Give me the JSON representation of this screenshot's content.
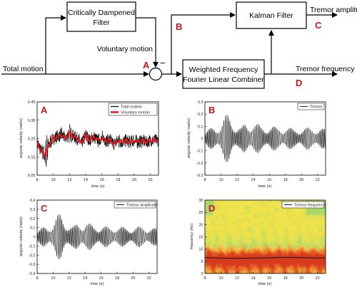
{
  "diagram": {
    "blocks": {
      "cd_filter": [
        "Critically Dampened",
        "Filter"
      ],
      "kalman": "Kalman Filter",
      "wflc": [
        "Weighted Frequency",
        "Fourier Linear Combiner"
      ]
    },
    "signals": {
      "total_motion": "Total motion",
      "voluntary_motion": "Voluntary motion",
      "tremor_amplitude": "Tremor amplitude",
      "tremor_frequency": "Tremor frequency"
    },
    "junction": {
      "minus": "−"
    },
    "markers": {
      "a": "A",
      "b": "B",
      "c": "C",
      "d": "D"
    }
  },
  "colors": {
    "marker": "#c8141e",
    "total_motion_line": "#000000",
    "voluntary_motion_line": "#e8151b",
    "tremor_line": "#222222",
    "freq_line": "#1a1a1a"
  },
  "chart_data": [
    {
      "panel": "A",
      "type": "line",
      "xlabel": "time (s)",
      "ylabel": "angular velocity (rad/s)",
      "xlim": [
        8,
        23
      ],
      "ylim": [
        0.05,
        0.45
      ],
      "xticks": [
        "8",
        "10",
        "12",
        "14",
        "16",
        "18",
        "20",
        "22"
      ],
      "yticks": [
        "0.45",
        "0.35",
        "0.25",
        "0.15",
        "0.05"
      ],
      "legend": [
        "Total motion",
        "Voluntary motion"
      ],
      "series": [
        {
          "name": "Total motion",
          "x": [
            8,
            8.4,
            8.8,
            9.2,
            9.6,
            10,
            10.5,
            11,
            11.5,
            12,
            12.5,
            13,
            13.5,
            14,
            14.5,
            15,
            15.5,
            16,
            16.5,
            17,
            17.5,
            18,
            18.5,
            19,
            19.5,
            20,
            20.5,
            21,
            21.5,
            22,
            22.5,
            23
          ],
          "values": [
            0.22,
            0.17,
            0.12,
            0.3,
            0.2,
            0.27,
            0.24,
            0.31,
            0.22,
            0.33,
            0.25,
            0.28,
            0.21,
            0.3,
            0.24,
            0.27,
            0.22,
            0.29,
            0.23,
            0.26,
            0.21,
            0.28,
            0.22,
            0.25,
            0.22,
            0.27,
            0.21,
            0.26,
            0.22,
            0.25,
            0.23,
            0.24
          ]
        },
        {
          "name": "Voluntary motion",
          "x": [
            8,
            8.5,
            9,
            9.5,
            10,
            10.5,
            11,
            11.5,
            12,
            12.5,
            13,
            13.5,
            14,
            14.5,
            15,
            15.5,
            16,
            16.5,
            17,
            17.5,
            18,
            18.5,
            19,
            19.5,
            20,
            20.5,
            21,
            21.5,
            22,
            22.5,
            23
          ],
          "values": [
            0.23,
            0.18,
            0.16,
            0.22,
            0.25,
            0.26,
            0.27,
            0.25,
            0.28,
            0.26,
            0.25,
            0.22,
            0.27,
            0.24,
            0.26,
            0.24,
            0.25,
            0.24,
            0.24,
            0.22,
            0.24,
            0.23,
            0.24,
            0.23,
            0.24,
            0.23,
            0.24,
            0.23,
            0.24,
            0.24,
            0.24
          ]
        }
      ]
    },
    {
      "panel": "B",
      "type": "line",
      "xlabel": "time (s)",
      "ylabel": "angular velocity (rad/s)",
      "xlim": [
        8,
        23
      ],
      "ylim": [
        -0.3,
        0.3
      ],
      "xticks": [
        "8",
        "10",
        "12",
        "14",
        "16",
        "18",
        "20",
        "22"
      ],
      "yticks": [
        "0.3",
        "0.2",
        "0.1",
        "0",
        "-0.1",
        "-0.2",
        "-0.3"
      ],
      "legend": [
        "Tremor"
      ],
      "series": [
        {
          "name": "Tremor",
          "freq_hz": 6,
          "envelope_x": [
            8,
            9,
            10,
            10.5,
            11,
            11.5,
            12,
            12.5,
            13,
            14,
            15,
            16,
            17,
            18,
            19,
            20,
            21,
            22,
            23
          ],
          "envelope": [
            0.05,
            0.09,
            0.12,
            0.17,
            0.19,
            0.15,
            0.1,
            0.08,
            0.12,
            0.14,
            0.09,
            0.11,
            0.08,
            0.1,
            0.07,
            0.09,
            0.08,
            0.09,
            0.07
          ]
        }
      ]
    },
    {
      "panel": "C",
      "type": "line",
      "xlabel": "time (s)",
      "ylabel": "angular velocity (rad/s)",
      "xlim": [
        8,
        23
      ],
      "ylim": [
        -0.4,
        0.4
      ],
      "xticks": [
        "8",
        "10",
        "12",
        "14",
        "16",
        "18",
        "20",
        "22"
      ],
      "yticks": [
        "0.4",
        "0.3",
        "0.2",
        "0.1",
        "0",
        "-0.1",
        "-0.2",
        "-0.3",
        "-0.4"
      ],
      "legend": [
        "Tremor amplitude"
      ],
      "series": [
        {
          "name": "Tremor amplitude",
          "freq_hz": 6,
          "envelope_x": [
            8,
            9,
            10,
            10.5,
            11,
            11.5,
            12,
            12.5,
            13,
            14,
            15,
            16,
            17,
            18,
            19,
            20,
            21,
            22,
            23
          ],
          "envelope": [
            0.06,
            0.11,
            0.15,
            0.21,
            0.25,
            0.2,
            0.13,
            0.1,
            0.14,
            0.17,
            0.11,
            0.13,
            0.09,
            0.12,
            0.09,
            0.11,
            0.1,
            0.11,
            0.08
          ]
        }
      ]
    },
    {
      "panel": "D",
      "type": "heatmap",
      "xlabel": "time (s)",
      "ylabel": "frequency (Hz)",
      "xlim": [
        8,
        23
      ],
      "ylim": [
        0,
        30
      ],
      "xticks": [
        "8",
        "10",
        "12",
        "14",
        "16",
        "18",
        "20",
        "22"
      ],
      "yticks": [
        "30",
        "25",
        "20",
        "15",
        "10",
        "5",
        "0"
      ],
      "legend": [
        "Tremor frequency"
      ],
      "series": [
        {
          "name": "Tremor frequency",
          "x": [
            8,
            10,
            12,
            14,
            16,
            18,
            20,
            22,
            23
          ],
          "values": [
            6.5,
            6.3,
            6.2,
            6.3,
            6.4,
            6.6,
            6.5,
            6.3,
            6.4
          ]
        }
      ]
    }
  ]
}
